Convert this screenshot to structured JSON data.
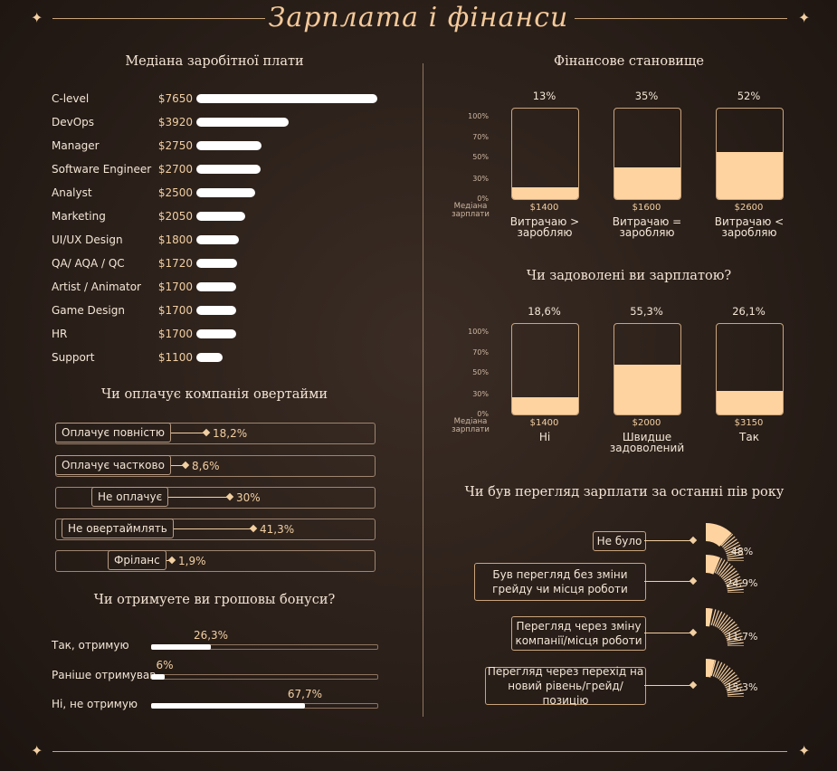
{
  "header": {
    "title": "Зарплата і фінанси"
  },
  "salary": {
    "title": "Медіана заробітної плати",
    "rows": [
      {
        "label": "C-level",
        "value_text": "$7650",
        "value": 7650
      },
      {
        "label": "DevOps",
        "value_text": "$3920",
        "value": 3920
      },
      {
        "label": "Manager",
        "value_text": "$2750",
        "value": 2750
      },
      {
        "label": "Software Engineer",
        "value_text": "$2700",
        "value": 2700
      },
      {
        "label": "Analyst",
        "value_text": "$2500",
        "value": 2500
      },
      {
        "label": "Marketing",
        "value_text": "$2050",
        "value": 2050
      },
      {
        "label": "UI/UX Design",
        "value_text": "$1800",
        "value": 1800
      },
      {
        "label": "QA/ AQA / QC",
        "value_text": "$1720",
        "value": 1720
      },
      {
        "label": "Artist / Animator",
        "value_text": "$1700",
        "value": 1700
      },
      {
        "label": "Game Design",
        "value_text": "$1700",
        "value": 1700
      },
      {
        "label": "HR",
        "value_text": "$1700",
        "value": 1700
      },
      {
        "label": "Support",
        "value_text": "$1100",
        "value": 1100
      }
    ]
  },
  "overtime": {
    "title": "Чи оплачує компанія овертайми",
    "rows": [
      {
        "label": "Оплачує повністю",
        "pct_text": "18,2%",
        "pct": 18.2
      },
      {
        "label": "Оплачує частково",
        "pct_text": "8,6%",
        "pct": 8.6
      },
      {
        "label": "Не оплачує",
        "pct_text": "30%",
        "pct": 30
      },
      {
        "label": "Не овертаймлять",
        "pct_text": "41,3%",
        "pct": 41.3
      },
      {
        "label": "Фріланс",
        "pct_text": "1,9%",
        "pct": 1.9
      }
    ]
  },
  "bonus": {
    "title": "Чи отримуете ви грошовы бонуси?",
    "rows": [
      {
        "label": "Так, отримую",
        "pct_text": "26,3%",
        "pct": 26.3
      },
      {
        "label": "Раніше отримував",
        "pct_text": "6%",
        "pct": 6
      },
      {
        "label": "Ні, не отримую",
        "pct_text": "67,7%",
        "pct": 67.7
      }
    ]
  },
  "finance": {
    "title": "Фінансове становище",
    "axis_ticks": [
      "100%",
      "70%",
      "50%",
      "30%",
      "0%"
    ],
    "axis_caption": "Медіана зарплати",
    "columns": [
      {
        "pct_text": "13%",
        "pct": 13,
        "median": "$1400",
        "caption": "Витрачаю > заробляю"
      },
      {
        "pct_text": "35%",
        "pct": 35,
        "median": "$1600",
        "caption": "Витрачаю = заробляю"
      },
      {
        "pct_text": "52%",
        "pct": 52,
        "median": "$2600",
        "caption": "Витрачаю < заробляю"
      }
    ]
  },
  "satisfaction": {
    "title": "Чи задоволені ви зарплатою?",
    "axis_ticks": [
      "100%",
      "70%",
      "50%",
      "30%",
      "0%"
    ],
    "axis_caption": "Медіана зарплати",
    "columns": [
      {
        "pct_text": "18,6%",
        "pct": 18.6,
        "median": "$1400",
        "caption": "Ні"
      },
      {
        "pct_text": "55,3%",
        "pct": 55.3,
        "median": "$2000",
        "caption": "Швидше задоволений"
      },
      {
        "pct_text": "26,1%",
        "pct": 26.1,
        "median": "$3150",
        "caption": "Так"
      }
    ]
  },
  "review": {
    "title": "Чи був перегляд зарплати за останні пів року",
    "rows": [
      {
        "label": "Не було",
        "pct_text": "48%",
        "pct": 48
      },
      {
        "label": "Був перегляд без зміни грейду чи місця роботи",
        "pct_text": "24,9%",
        "pct": 24.9
      },
      {
        "label": "Перегляд через зміну компанії/місця роботи",
        "pct_text": "11,7%",
        "pct": 11.7
      },
      {
        "label": "Перегляд через перехід на новий рівень/грейд/позицію",
        "pct_text": "15,3%",
        "pct": 15.3
      }
    ]
  },
  "chart_data": [
    {
      "type": "bar",
      "title": "Медіана заробітної плати",
      "categories": [
        "C-level",
        "DevOps",
        "Manager",
        "Software Engineer",
        "Analyst",
        "Marketing",
        "UI/UX Design",
        "QA/ AQA / QC",
        "Artist / Animator",
        "Game Design",
        "HR",
        "Support"
      ],
      "values": [
        7650,
        3920,
        2750,
        2700,
        2500,
        2050,
        1800,
        1720,
        1700,
        1700,
        1700,
        1100
      ]
    },
    {
      "type": "bar",
      "title": "Чи оплачує компанія овертайми",
      "categories": [
        "Оплачує повністю",
        "Оплачує частково",
        "Не оплачує",
        "Не овертаймлять",
        "Фріланс"
      ],
      "values": [
        18.2,
        8.6,
        30,
        41.3,
        1.9
      ]
    },
    {
      "type": "bar",
      "title": "Чи отримуете ви грошовы бонуси?",
      "categories": [
        "Так, отримую",
        "Раніше отримував",
        "Ні, не отримую"
      ],
      "values": [
        26.3,
        6,
        67.7
      ],
      "ylim": [
        0,
        100
      ]
    },
    {
      "type": "bar",
      "title": "Фінансове становище",
      "categories": [
        "Витрачаю > заробляю",
        "Витрачаю = заробляю",
        "Витрачаю < заробляю"
      ],
      "values": [
        13,
        35,
        52
      ],
      "ylim": [
        0,
        100
      ]
    },
    {
      "type": "bar",
      "title": "Чи задоволені ви зарплатою?",
      "categories": [
        "Ні",
        "Швидше задоволений",
        "Так"
      ],
      "values": [
        18.6,
        55.3,
        26.1
      ],
      "ylim": [
        0,
        100
      ]
    },
    {
      "type": "pie",
      "title": "Чи був перегляд зарплати за останні пів року",
      "categories": [
        "Не було",
        "Був перегляд без зміни грейду чи місця роботи",
        "Перегляд через зміну компанії/місця роботи",
        "Перегляд через перехід на новий рівень/грейд/позицію"
      ],
      "values": [
        48,
        24.9,
        11.7,
        15.3
      ]
    }
  ]
}
